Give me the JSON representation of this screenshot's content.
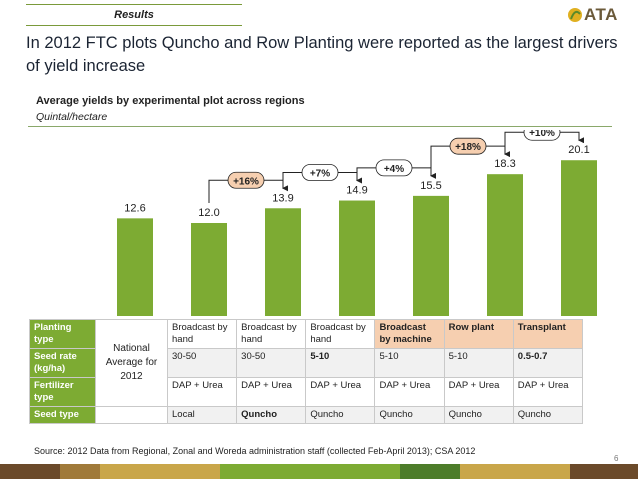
{
  "header": {
    "section_label": "Results",
    "logo_text": "ATA",
    "headline": "In 2012 FTC plots Quncho and Row Planting were reported as the largest drivers of yield increase"
  },
  "chart_data": {
    "type": "bar",
    "title": "Average yields by experimental plot across regions",
    "subtitle": "Quintal/hectare",
    "categories": [
      "National Average for 2012",
      "Broadcast/hand/DAP+Urea/Local",
      "Broadcast/hand/DAP+Urea/Quncho",
      "Broadcast/hand/5-10/DAP+Urea/Quncho",
      "Broadcast by machine/Quncho",
      "Row plant/Quncho",
      "Transplant/Quncho"
    ],
    "values": [
      12.6,
      12.0,
      13.9,
      14.9,
      15.5,
      18.3,
      20.1
    ],
    "value_labels": [
      "12.6",
      "12.0",
      "13.9",
      "14.9",
      "15.5",
      "18.3",
      "20.1"
    ],
    "bar_color": "#7dab33",
    "ylim": [
      0,
      24
    ],
    "grid": false,
    "annotations": [
      {
        "label": "+16%",
        "from": 1,
        "to": 2,
        "highlight": true
      },
      {
        "label": "+7%",
        "from": 2,
        "to": 3,
        "highlight": false
      },
      {
        "label": "+4%",
        "from": 3,
        "to": 4,
        "highlight": false
      },
      {
        "label": "+18%",
        "from": 4,
        "to": 5,
        "highlight": true
      },
      {
        "label": "+10%",
        "from": 5,
        "to": 6,
        "highlight": false
      }
    ]
  },
  "table": {
    "national": "National Average for 2012",
    "rows": [
      {
        "label": "Planting type",
        "cells": [
          "Broadcast by hand",
          "Broadcast by hand",
          "Broadcast by hand",
          "Broadcast by machine",
          "Row plant",
          "Transplant"
        ],
        "highlight": [
          false,
          false,
          false,
          true,
          true,
          true
        ]
      },
      {
        "label": "Seed rate (kg/ha)",
        "cells": [
          "30-50",
          "30-50",
          "5-10",
          "5-10",
          "5-10",
          "0.5-0.7"
        ],
        "highlight": [
          false,
          false,
          true,
          false,
          false,
          true
        ]
      },
      {
        "label": "Fertilizer type",
        "cells": [
          "DAP + Urea",
          "DAP + Urea",
          "DAP + Urea",
          "DAP + Urea",
          "DAP + Urea",
          "DAP + Urea"
        ],
        "highlight": [
          false,
          false,
          false,
          false,
          false,
          false
        ]
      },
      {
        "label": "Seed type",
        "cells": [
          "Local",
          "Quncho",
          "Quncho",
          "Quncho",
          "Quncho",
          "Quncho"
        ],
        "highlight": [
          false,
          true,
          false,
          false,
          false,
          false
        ]
      }
    ]
  },
  "footer": {
    "source": "Source:  2012 Data from Regional, Zonal and Woreda administration staff (collected Feb-April 2013); CSA 2012",
    "page_number": "6",
    "bar_colors": [
      "#6b4a2a",
      "#a07a3a",
      "#c9a64a",
      "#7dab33",
      "#4d7d2a",
      "#c9a64a",
      "#6b4a2a"
    ]
  }
}
